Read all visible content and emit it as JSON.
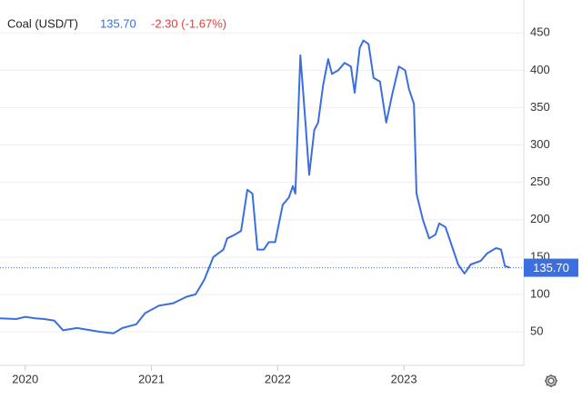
{
  "chart_data": {
    "type": "line",
    "title": "Coal (USD/T)",
    "last": {
      "value": 135.7,
      "label": "135.70"
    },
    "change": "-2.30 (-1.67%)",
    "x": [
      2019.8,
      2019.93,
      2020.0,
      2020.08,
      2020.15,
      2020.23,
      2020.3,
      2020.41,
      2020.59,
      2020.7,
      2020.77,
      2020.88,
      2020.95,
      2021.06,
      2021.17,
      2021.28,
      2021.35,
      2021.42,
      2021.49,
      2021.57,
      2021.6,
      2021.66,
      2021.71,
      2021.76,
      2021.8,
      2021.84,
      2021.89,
      2021.93,
      2021.98,
      2022.04,
      2022.09,
      2022.12,
      2022.14,
      2022.18,
      2022.22,
      2022.25,
      2022.29,
      2022.32,
      2022.36,
      2022.4,
      2022.43,
      2022.48,
      2022.53,
      2022.58,
      2022.61,
      2022.65,
      2022.68,
      2022.72,
      2022.76,
      2022.81,
      2022.86,
      2022.91,
      2022.96,
      2023.01,
      2023.04,
      2023.08,
      2023.1,
      2023.15,
      2023.2,
      2023.25,
      2023.28,
      2023.33,
      2023.38,
      2023.43,
      2023.48,
      2023.53,
      2023.61,
      2023.66,
      2023.73,
      2023.77,
      2023.8,
      2023.84
    ],
    "series": [
      {
        "name": "Coal",
        "color": "#3b6fe0",
        "values": [
          68,
          67,
          70,
          68,
          67,
          65,
          52,
          55,
          50,
          48,
          55,
          60,
          75,
          85,
          88,
          97,
          100,
          120,
          150,
          160,
          175,
          180,
          185,
          240,
          235,
          160,
          160,
          170,
          170,
          220,
          230,
          245,
          235,
          420,
          330,
          260,
          320,
          330,
          380,
          415,
          395,
          400,
          410,
          405,
          370,
          430,
          440,
          435,
          390,
          385,
          330,
          370,
          405,
          400,
          375,
          355,
          235,
          200,
          175,
          180,
          195,
          190,
          165,
          140,
          128,
          140,
          145,
          155,
          162,
          160,
          138,
          135.7
        ]
      }
    ],
    "xlim": [
      2019.8,
      2023.95
    ],
    "xticks": [
      2020,
      2021,
      2022,
      2023
    ],
    "ylim": [
      5,
      488
    ],
    "yticks": [
      50,
      100,
      150,
      200,
      250,
      300,
      350,
      400,
      450
    ],
    "grid": true
  }
}
